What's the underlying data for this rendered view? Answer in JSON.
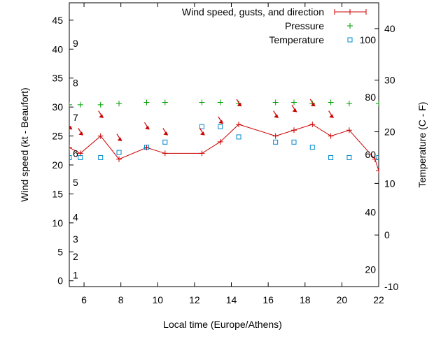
{
  "chart_data": {
    "type": "line",
    "xlabel": "Local time (Europe/Athens)",
    "ylabel_left": "Wind speed (kt - Beaufort)",
    "ylabel_right": "Temperature (C - F)",
    "xlim": [
      5.2,
      22
    ],
    "ylim_left": [
      -1,
      48
    ],
    "ylim_right": [
      -10,
      45
    ],
    "x_ticks": [
      6,
      8,
      10,
      12,
      14,
      16,
      18,
      20,
      22
    ],
    "y_left_ticks": [
      0,
      5,
      10,
      15,
      20,
      25,
      30,
      35,
      40,
      45
    ],
    "y_right_ticks": [
      -10,
      0,
      10,
      20,
      30,
      40
    ],
    "beaufort_labels": [
      {
        "label": "1",
        "kt": 1
      },
      {
        "label": "2",
        "kt": 4.2
      },
      {
        "label": "3",
        "kt": 7.2
      },
      {
        "label": "4",
        "kt": 11
      },
      {
        "label": "5",
        "kt": 17
      },
      {
        "label": "6",
        "kt": 22
      },
      {
        "label": "7",
        "kt": 28.2
      },
      {
        "label": "8",
        "kt": 34.2
      },
      {
        "label": "9",
        "kt": 41
      }
    ],
    "fahrenheit_labels": [
      {
        "label": "20",
        "c": -6.7
      },
      {
        "label": "40",
        "c": 4.4
      },
      {
        "label": "60",
        "c": 15.6
      },
      {
        "label": "80",
        "c": 26.7
      },
      {
        "label": "100",
        "c": 37.8
      }
    ],
    "legend_position": "top-right",
    "series": [
      {
        "name": "Wind speed, gusts, and direction",
        "color": "#cc0000",
        "axis": "left",
        "x": [
          5.2,
          5.8,
          6.9,
          7.9,
          9.4,
          10.4,
          12.4,
          13.4,
          14.4,
          16.4,
          17.4,
          18.4,
          19.4,
          20.4,
          21.8,
          22
        ],
        "y": [
          23,
          22,
          25,
          21,
          23,
          22,
          22,
          24,
          27,
          25,
          26,
          27,
          25,
          26,
          21,
          19
        ]
      },
      {
        "name": "Pressure",
        "color": "#00a000",
        "axis": "left",
        "x": [
          5.2,
          5.8,
          6.9,
          7.9,
          9.4,
          10.4,
          12.4,
          13.4,
          14.4,
          16.4,
          17.4,
          18.4,
          19.4,
          20.4,
          22
        ],
        "y": [
          30.4,
          30.4,
          30.4,
          30.6,
          30.8,
          30.8,
          30.8,
          30.8,
          30.6,
          30.8,
          30.8,
          30.6,
          30.8,
          30.6,
          30.6
        ]
      },
      {
        "name": "Temperature",
        "color": "#0088cc",
        "axis": "right",
        "x": [
          5.2,
          5.8,
          6.9,
          7.9,
          9.4,
          10.4,
          12.4,
          13.4,
          14.4,
          16.4,
          17.4,
          18.4,
          19.4,
          20.4,
          22
        ],
        "y": [
          15,
          15,
          15,
          16,
          17,
          18,
          21,
          21,
          19,
          18,
          18,
          17,
          15,
          15,
          15
        ]
      }
    ],
    "wind_arrows": {
      "x": [
        5.2,
        5.8,
        6.9,
        7.9,
        9.4,
        10.4,
        12.4,
        13.4,
        14.4,
        16.4,
        17.4,
        18.4,
        19.4
      ],
      "y": [
        26.5,
        25.5,
        28.5,
        24.5,
        26.5,
        25.5,
        25.5,
        27.5,
        30.5,
        28.5,
        29.5,
        30.5,
        28.5
      ]
    }
  }
}
